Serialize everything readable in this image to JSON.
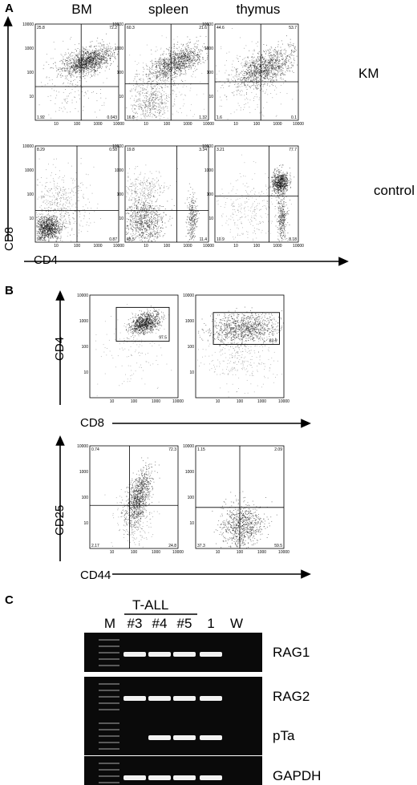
{
  "panelA": {
    "letter": "A",
    "columns": [
      "BM",
      "spleen",
      "thymus"
    ],
    "rows": [
      "KM",
      "control"
    ],
    "y_axis": "CD8",
    "x_axis": "CD4",
    "tick_labels": [
      "10",
      "100",
      "1000",
      "10000"
    ],
    "quadrant_values": [
      [
        {
          "ul": "25.8",
          "ur": "72.2",
          "ll": "1.92",
          "lr": "0.043"
        },
        {
          "ul": "60.3",
          "ur": "21.6",
          "ll": "16.8",
          "lr": "1.32"
        },
        {
          "ul": "44.6",
          "ur": "53.7",
          "ll": "1.6",
          "lr": "0.1"
        }
      ],
      [
        {
          "ul": "8.29",
          "ur": "0.58",
          "ll": "90.3",
          "lr": "0.87"
        },
        {
          "ul": "19.8",
          "ur": "3.34",
          "ll": "65.5",
          "lr": "11.4"
        },
        {
          "ul": "3.21",
          "ur": "77.7",
          "ll": "10.9",
          "lr": "8.18"
        }
      ]
    ]
  },
  "panelB": {
    "letter": "B",
    "top_y_axis": "CD4",
    "top_x_axis": "CD8",
    "bottom_y_axis": "CD25",
    "bottom_x_axis": "CD44",
    "tick_labels": [
      "10",
      "100",
      "1000",
      "10000"
    ],
    "gates": [
      "97.5",
      "83.9"
    ],
    "quadrant_values": [
      {
        "ul": "0.74",
        "ur": "72.3",
        "ll": "2.17",
        "lr": "24.8"
      },
      {
        "ul": "1.15",
        "ur": "2.09",
        "ll": "37.3",
        "lr": "59.5"
      }
    ]
  },
  "panelC": {
    "letter": "C",
    "group_label": "T-ALL",
    "lanes": [
      "M",
      "#3",
      "#4",
      "#5",
      "1",
      "W"
    ],
    "genes": [
      "RAG1",
      "RAG2",
      "pTa",
      "GAPDH"
    ]
  }
}
